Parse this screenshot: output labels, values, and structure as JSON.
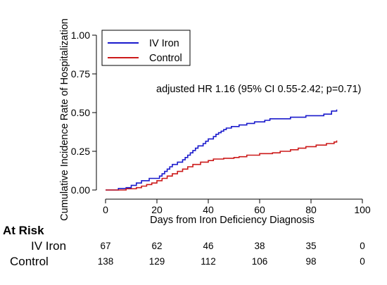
{
  "chart_data": {
    "type": "line",
    "title": "",
    "xlabel": "Days from Iron Deficiency Diagnosis",
    "ylabel": "Cumulative Incidence Rate of Hospitalization",
    "xlim": [
      0,
      100
    ],
    "ylim": [
      0,
      1
    ],
    "x_ticks": [
      "0",
      "20",
      "40",
      "60",
      "80",
      "100"
    ],
    "y_ticks": [
      "0.00",
      "0.25",
      "0.50",
      "0.75",
      "1.00"
    ],
    "grid": false,
    "legend_position": "top-left",
    "annotation": "adjusted HR 1.16 (95% CI 0.55-2.42; p=0.71)",
    "series": [
      {
        "name": "IV Iron",
        "color": "#1a1acc",
        "step": true,
        "x": [
          0,
          5,
          8,
          10,
          12,
          14,
          17,
          21,
          22,
          23,
          24,
          25,
          26,
          28,
          30,
          31,
          32,
          33,
          34,
          35,
          36,
          38,
          39,
          40,
          42,
          43,
          44,
          45,
          46,
          47,
          49,
          52,
          55,
          58,
          62,
          64,
          72,
          78,
          85,
          88,
          90
        ],
        "y": [
          0,
          0.01,
          0.015,
          0.03,
          0.045,
          0.06,
          0.075,
          0.09,
          0.105,
          0.12,
          0.135,
          0.15,
          0.165,
          0.18,
          0.195,
          0.21,
          0.225,
          0.24,
          0.255,
          0.27,
          0.285,
          0.3,
          0.315,
          0.33,
          0.345,
          0.36,
          0.37,
          0.38,
          0.39,
          0.4,
          0.41,
          0.42,
          0.43,
          0.44,
          0.45,
          0.46,
          0.47,
          0.48,
          0.49,
          0.51,
          0.52
        ]
      },
      {
        "name": "Control",
        "color": "#cc1a1a",
        "step": true,
        "x": [
          0,
          8,
          12,
          14,
          16,
          18,
          20,
          22,
          24,
          26,
          28,
          30,
          32,
          34,
          37,
          40,
          42,
          46,
          50,
          52,
          55,
          60,
          65,
          68,
          72,
          75,
          78,
          82,
          86,
          89,
          90
        ],
        "y": [
          0,
          0.008,
          0.015,
          0.025,
          0.035,
          0.045,
          0.06,
          0.075,
          0.09,
          0.105,
          0.12,
          0.135,
          0.15,
          0.165,
          0.18,
          0.19,
          0.2,
          0.205,
          0.21,
          0.215,
          0.225,
          0.235,
          0.24,
          0.25,
          0.26,
          0.27,
          0.28,
          0.29,
          0.3,
          0.31,
          0.32
        ]
      }
    ],
    "at_risk": {
      "title": "At Risk",
      "times": [
        0,
        20,
        40,
        60,
        80,
        100
      ],
      "rows": [
        {
          "label": "IV Iron",
          "values": [
            "67",
            "62",
            "46",
            "38",
            "35",
            "0"
          ]
        },
        {
          "label": "Control",
          "values": [
            "138",
            "129",
            "112",
            "106",
            "98",
            "0"
          ]
        }
      ]
    }
  }
}
